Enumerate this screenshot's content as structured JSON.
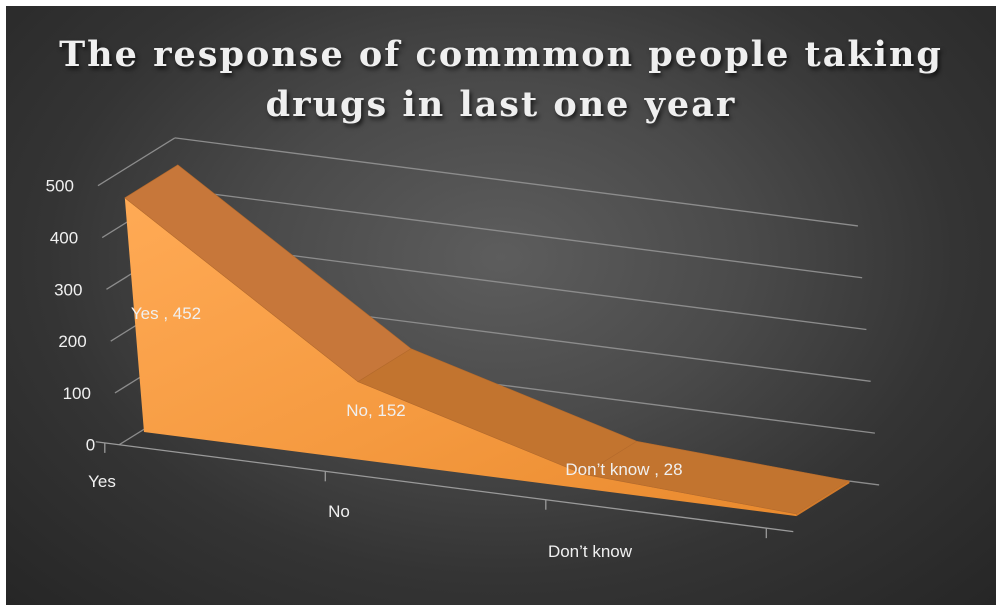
{
  "chart_data": {
    "type": "area",
    "title_lines": [
      "The response of commmon people taking",
      "drugs in last one year"
    ],
    "categories": [
      "Yes",
      "No",
      "Don’t know"
    ],
    "values": [
      452,
      152,
      28
    ],
    "data_labels": [
      "Yes , 452",
      "No, 152",
      "Don’t know , 28"
    ],
    "yticks": [
      "0",
      "100",
      "200",
      "300",
      "400",
      "500"
    ],
    "ylim": [
      0,
      500
    ],
    "grid": true,
    "legend": "none",
    "series_color": "#f4a04a"
  }
}
